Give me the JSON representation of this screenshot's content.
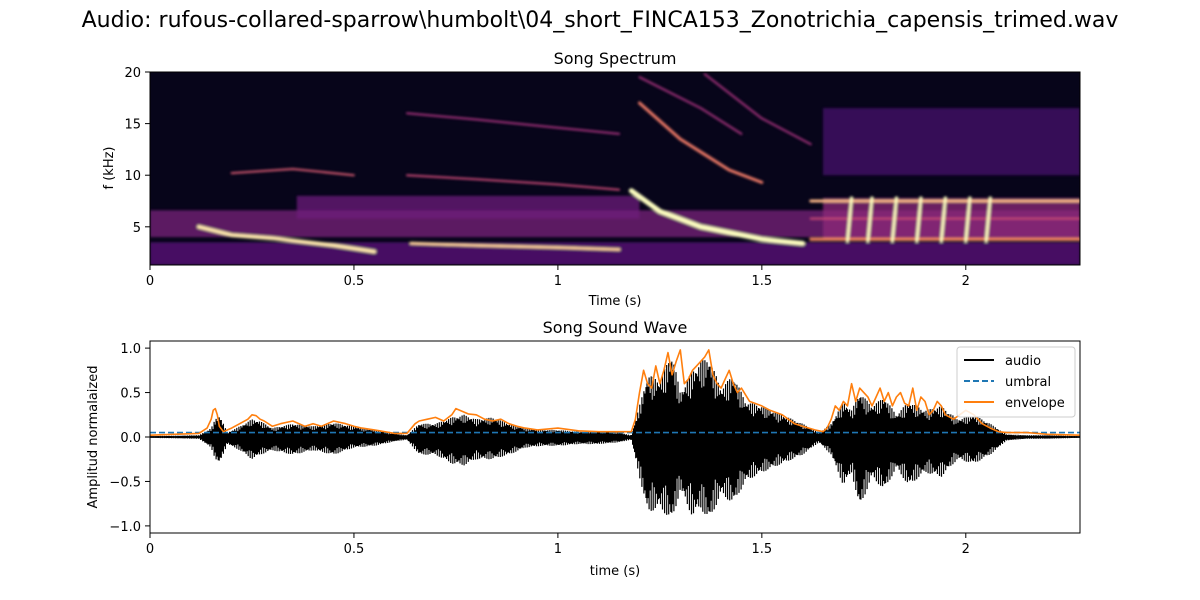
{
  "figure": {
    "suptitle": "Audio: rufous-collared-sparrow\\humbolt\\04_short_FINCA153_Zonotrichia_capensis_trimed.wav"
  },
  "chart_data": [
    {
      "type": "heatmap",
      "title": "Song Spectrum",
      "xlabel": "Time (s)",
      "ylabel": "f (kHz)",
      "xlim": [
        0,
        2.28
      ],
      "ylim": [
        1.3,
        20
      ],
      "xticks": [
        0,
        0.5,
        1,
        1.5,
        2
      ],
      "xtick_labels": [
        "0",
        "0.5",
        "1",
        "1.5",
        "2"
      ],
      "yticks": [
        5,
        10,
        15,
        20
      ],
      "ytick_labels": [
        "5",
        "10",
        "15",
        "20"
      ],
      "colormap": "magma",
      "background_color": "#07051a",
      "bands": [
        {
          "t": [
            0.0,
            2.28
          ],
          "f": [
            4.0,
            6.6
          ],
          "level": 0.35
        },
        {
          "t": [
            0.0,
            2.28
          ],
          "f": [
            1.3,
            3.5
          ],
          "level": 0.28
        },
        {
          "t": [
            0.36,
            1.2
          ],
          "f": [
            5.8,
            8.0
          ],
          "level": 0.32
        },
        {
          "t": [
            1.65,
            2.28
          ],
          "f": [
            3.8,
            7.8
          ],
          "level": 0.4
        },
        {
          "t": [
            1.65,
            2.28
          ],
          "f": [
            10.0,
            16.5
          ],
          "level": 0.22
        }
      ],
      "traces": [
        {
          "t": [
            0.12,
            0.2,
            0.3,
            0.45,
            0.55
          ],
          "f": [
            5.0,
            4.2,
            3.9,
            3.2,
            2.6
          ],
          "level": 0.95,
          "width": 4
        },
        {
          "t": [
            0.2,
            0.35,
            0.5
          ],
          "f": [
            10.2,
            10.6,
            10.0
          ],
          "level": 0.6,
          "width": 2
        },
        {
          "t": [
            0.64,
            0.8,
            1.0,
            1.15
          ],
          "f": [
            3.4,
            3.2,
            3.0,
            2.8
          ],
          "level": 0.9,
          "width": 3
        },
        {
          "t": [
            0.63,
            0.8,
            1.0,
            1.15
          ],
          "f": [
            10.0,
            9.6,
            9.1,
            8.6
          ],
          "level": 0.55,
          "width": 2
        },
        {
          "t": [
            0.63,
            0.8,
            1.0,
            1.15
          ],
          "f": [
            16.0,
            15.4,
            14.6,
            14.0
          ],
          "level": 0.45,
          "width": 2
        },
        {
          "t": [
            1.18,
            1.25,
            1.35,
            1.5,
            1.6
          ],
          "f": [
            8.5,
            6.5,
            5.0,
            3.8,
            3.4
          ],
          "level": 1.0,
          "width": 5
        },
        {
          "t": [
            1.2,
            1.3,
            1.42,
            1.5
          ],
          "f": [
            17.0,
            13.5,
            10.5,
            9.3
          ],
          "level": 0.7,
          "width": 3
        },
        {
          "t": [
            1.2,
            1.35,
            1.45
          ],
          "f": [
            19.5,
            16.5,
            14.0
          ],
          "level": 0.45,
          "width": 2
        },
        {
          "t": [
            1.36,
            1.5,
            1.62
          ],
          "f": [
            19.8,
            15.5,
            13.0
          ],
          "level": 0.45,
          "width": 2
        },
        {
          "t": [
            1.62,
            2.28
          ],
          "f": [
            3.8,
            3.8
          ],
          "level": 0.75,
          "width": 3
        },
        {
          "t": [
            1.62,
            2.28
          ],
          "f": [
            7.5,
            7.5
          ],
          "level": 0.85,
          "width": 3
        },
        {
          "t": [
            1.62,
            2.28
          ],
          "f": [
            5.8,
            5.8
          ],
          "level": 0.55,
          "width": 2
        }
      ],
      "syllables": {
        "t": [
          1.71,
          1.76,
          1.82,
          1.88,
          1.94,
          2.0,
          2.05
        ],
        "f": [
          3.6,
          7.8
        ],
        "level": 1.0
      }
    },
    {
      "type": "line",
      "title": "Song Sound Wave",
      "xlabel": "time (s)",
      "ylabel": "Amplitud normalaized",
      "xlim": [
        0,
        2.28
      ],
      "ylim": [
        -1.08,
        1.08
      ],
      "xticks": [
        0,
        0.5,
        1,
        1.5,
        2
      ],
      "xtick_labels": [
        "0",
        "0.5",
        "1",
        "1.5",
        "2"
      ],
      "yticks": [
        -1.0,
        -0.5,
        0.0,
        0.5,
        1.0
      ],
      "ytick_labels": [
        "−1.0",
        "−0.5",
        "0.0",
        "0.5",
        "1.0"
      ],
      "legend_position": "top-right",
      "series": [
        {
          "name": "audio",
          "color": "#000000",
          "style": "solid",
          "upper_env": {
            "x": [
              0,
              0.12,
              0.15,
              0.16,
              0.17,
              0.19,
              0.22,
              0.25,
              0.27,
              0.3,
              0.35,
              0.4,
              0.45,
              0.5,
              0.55,
              0.6,
              0.63,
              0.66,
              0.7,
              0.74,
              0.77,
              0.8,
              0.84,
              0.88,
              0.92,
              0.96,
              1.0,
              1.05,
              1.1,
              1.15,
              1.18,
              1.2,
              1.22,
              1.25,
              1.28,
              1.3,
              1.33,
              1.35,
              1.37,
              1.4,
              1.43,
              1.46,
              1.5,
              1.55,
              1.6,
              1.64,
              1.67,
              1.7,
              1.72,
              1.74,
              1.77,
              1.8,
              1.83,
              1.86,
              1.9,
              1.94,
              1.98,
              2.02,
              2.06,
              2.1,
              2.15,
              2.2,
              2.28
            ],
            "y": [
              0.01,
              0.02,
              0.1,
              0.2,
              0.25,
              0.05,
              0.12,
              0.2,
              0.18,
              0.1,
              0.15,
              0.12,
              0.16,
              0.12,
              0.08,
              0.04,
              0.02,
              0.15,
              0.15,
              0.22,
              0.25,
              0.2,
              0.22,
              0.15,
              0.1,
              0.08,
              0.08,
              0.06,
              0.07,
              0.05,
              0.02,
              0.35,
              0.7,
              0.65,
              0.95,
              0.5,
              0.75,
              0.85,
              0.9,
              0.55,
              0.7,
              0.4,
              0.35,
              0.25,
              0.15,
              0.05,
              0.15,
              0.4,
              0.3,
              0.5,
              0.35,
              0.45,
              0.25,
              0.4,
              0.3,
              0.35,
              0.2,
              0.25,
              0.15,
              0.03,
              0.02,
              0.02,
              0.01
            ]
          },
          "lower_env": {
            "x": [
              0,
              0.12,
              0.15,
              0.16,
              0.17,
              0.19,
              0.22,
              0.25,
              0.27,
              0.3,
              0.35,
              0.4,
              0.45,
              0.5,
              0.55,
              0.6,
              0.63,
              0.66,
              0.7,
              0.74,
              0.77,
              0.8,
              0.84,
              0.88,
              0.92,
              0.96,
              1.0,
              1.05,
              1.1,
              1.15,
              1.18,
              1.2,
              1.22,
              1.25,
              1.28,
              1.3,
              1.33,
              1.35,
              1.37,
              1.4,
              1.43,
              1.46,
              1.5,
              1.55,
              1.6,
              1.64,
              1.67,
              1.7,
              1.72,
              1.74,
              1.77,
              1.8,
              1.83,
              1.86,
              1.9,
              1.94,
              1.98,
              2.02,
              2.06,
              2.1,
              2.15,
              2.2,
              2.28
            ],
            "y": [
              -0.01,
              -0.02,
              -0.12,
              -0.25,
              -0.3,
              -0.08,
              -0.15,
              -0.25,
              -0.2,
              -0.15,
              -0.2,
              -0.15,
              -0.2,
              -0.12,
              -0.1,
              -0.05,
              -0.03,
              -0.2,
              -0.2,
              -0.3,
              -0.32,
              -0.25,
              -0.25,
              -0.2,
              -0.12,
              -0.1,
              -0.1,
              -0.08,
              -0.08,
              -0.06,
              -0.03,
              -0.45,
              -0.85,
              -0.8,
              -0.95,
              -0.6,
              -0.9,
              -0.8,
              -0.95,
              -0.65,
              -0.75,
              -0.5,
              -0.4,
              -0.3,
              -0.2,
              -0.06,
              -0.2,
              -0.55,
              -0.4,
              -0.8,
              -0.45,
              -0.6,
              -0.35,
              -0.55,
              -0.4,
              -0.45,
              -0.25,
              -0.3,
              -0.2,
              -0.04,
              -0.02,
              -0.02,
              -0.01
            ]
          }
        },
        {
          "name": "umbral",
          "color": "#1f77b4",
          "style": "dashed",
          "x": [
            0,
            2.28
          ],
          "y": [
            0.05,
            0.05
          ]
        },
        {
          "name": "envelope",
          "color": "#ff7f0e",
          "style": "solid",
          "x": [
            0,
            0.12,
            0.14,
            0.15,
            0.155,
            0.16,
            0.165,
            0.17,
            0.18,
            0.19,
            0.2,
            0.22,
            0.24,
            0.25,
            0.26,
            0.27,
            0.28,
            0.3,
            0.32,
            0.35,
            0.38,
            0.4,
            0.42,
            0.45,
            0.48,
            0.5,
            0.52,
            0.55,
            0.6,
            0.63,
            0.65,
            0.66,
            0.68,
            0.7,
            0.72,
            0.74,
            0.75,
            0.77,
            0.78,
            0.8,
            0.82,
            0.84,
            0.86,
            0.88,
            0.9,
            0.92,
            0.95,
            1.0,
            1.05,
            1.1,
            1.15,
            1.18,
            1.19,
            1.2,
            1.21,
            1.22,
            1.23,
            1.24,
            1.25,
            1.26,
            1.27,
            1.28,
            1.29,
            1.3,
            1.31,
            1.32,
            1.33,
            1.34,
            1.35,
            1.36,
            1.37,
            1.38,
            1.39,
            1.4,
            1.41,
            1.42,
            1.43,
            1.44,
            1.45,
            1.47,
            1.5,
            1.52,
            1.55,
            1.58,
            1.6,
            1.63,
            1.65,
            1.66,
            1.67,
            1.68,
            1.69,
            1.7,
            1.71,
            1.72,
            1.73,
            1.74,
            1.75,
            1.76,
            1.77,
            1.78,
            1.79,
            1.8,
            1.81,
            1.82,
            1.83,
            1.84,
            1.85,
            1.86,
            1.87,
            1.88,
            1.89,
            1.9,
            1.91,
            1.92,
            1.93,
            1.94,
            1.95,
            1.97,
            2.0,
            2.02,
            2.04,
            2.06,
            2.08,
            2.1,
            2.15,
            2.2,
            2.28
          ],
          "y": [
            0.02,
            0.04,
            0.1,
            0.2,
            0.3,
            0.32,
            0.25,
            0.12,
            0.06,
            0.08,
            0.1,
            0.15,
            0.2,
            0.25,
            0.24,
            0.2,
            0.18,
            0.12,
            0.15,
            0.18,
            0.12,
            0.15,
            0.12,
            0.18,
            0.15,
            0.12,
            0.1,
            0.08,
            0.04,
            0.04,
            0.15,
            0.18,
            0.2,
            0.22,
            0.18,
            0.25,
            0.32,
            0.28,
            0.26,
            0.25,
            0.2,
            0.18,
            0.2,
            0.15,
            0.12,
            0.1,
            0.08,
            0.1,
            0.07,
            0.06,
            0.06,
            0.06,
            0.2,
            0.5,
            0.75,
            0.6,
            0.55,
            0.8,
            0.6,
            0.75,
            0.95,
            0.7,
            0.85,
            0.98,
            0.6,
            0.65,
            0.75,
            0.8,
            0.85,
            0.9,
            0.98,
            0.7,
            0.6,
            0.55,
            0.65,
            0.75,
            0.6,
            0.5,
            0.55,
            0.4,
            0.35,
            0.3,
            0.25,
            0.15,
            0.12,
            0.08,
            0.06,
            0.1,
            0.2,
            0.35,
            0.3,
            0.4,
            0.35,
            0.6,
            0.4,
            0.55,
            0.5,
            0.45,
            0.35,
            0.45,
            0.55,
            0.4,
            0.5,
            0.35,
            0.45,
            0.5,
            0.38,
            0.35,
            0.55,
            0.3,
            0.45,
            0.4,
            0.25,
            0.3,
            0.4,
            0.35,
            0.25,
            0.2,
            0.3,
            0.25,
            0.15,
            0.1,
            0.06,
            0.05,
            0.05,
            0.03,
            0.02
          ]
        }
      ]
    }
  ]
}
